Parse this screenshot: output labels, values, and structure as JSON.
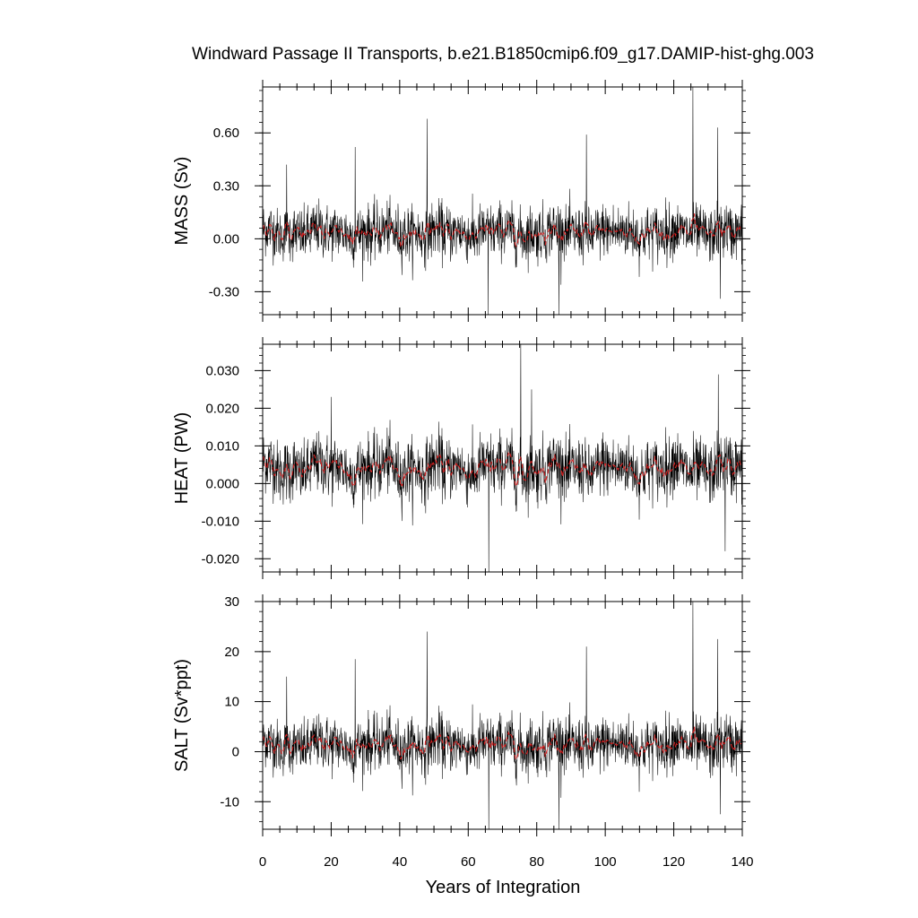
{
  "chart_data": {
    "type": "line",
    "title": "Windward Passage II Transports, b.e21.B1850cmip6.f09_g17.DAMIP-hist-ghg.003",
    "xlabel": "Years of Integration",
    "xlim": [
      0,
      140
    ],
    "xticks": [
      0,
      20,
      40,
      60,
      80,
      100,
      120,
      140
    ],
    "colors": {
      "monthly": "#000000",
      "smoothed": "#d62020"
    },
    "panels": [
      {
        "id": "mass",
        "ylabel": "MASS (Sv)",
        "ylim": [
          -0.43,
          0.86
        ],
        "yticks": [
          {
            "v": -0.3,
            "label": "-0.30"
          },
          {
            "v": 0.0,
            "label": "0.00"
          },
          {
            "v": 0.3,
            "label": "0.30"
          },
          {
            "v": 0.6,
            "label": "0.60"
          }
        ],
        "mean": 0.035,
        "noise": 0.09,
        "smooth_amp": 0.02,
        "spikes": [
          [
            7,
            0.42
          ],
          [
            27,
            0.52
          ],
          [
            48,
            0.68
          ],
          [
            65.8,
            -0.43
          ],
          [
            86.5,
            -0.43
          ],
          [
            94.5,
            0.59
          ],
          [
            125.6,
            0.86
          ],
          [
            132.8,
            0.63
          ],
          [
            133.6,
            -0.34
          ]
        ]
      },
      {
        "id": "heat",
        "ylabel": "HEAT (PW)",
        "ylim": [
          -0.0235,
          0.037
        ],
        "yticks": [
          {
            "v": -0.02,
            "label": "-0.020"
          },
          {
            "v": -0.01,
            "label": "-0.010"
          },
          {
            "v": 0.0,
            "label": "0.000"
          },
          {
            "v": 0.01,
            "label": "0.010"
          },
          {
            "v": 0.02,
            "label": "0.020"
          },
          {
            "v": 0.03,
            "label": "0.030"
          }
        ],
        "mean": 0.004,
        "noise": 0.0048,
        "smooth_amp": 0.0018,
        "spikes": [
          [
            20,
            0.023
          ],
          [
            66,
            -0.0235
          ],
          [
            75.3,
            0.037
          ],
          [
            78.5,
            0.025
          ],
          [
            133,
            0.029
          ],
          [
            135,
            -0.018
          ]
        ]
      },
      {
        "id": "salt",
        "ylabel": "SALT (Sv*ppt)",
        "ylim": [
          -15.5,
          30
        ],
        "yticks": [
          {
            "v": -10,
            "label": "-10"
          },
          {
            "v": 0,
            "label": "0"
          },
          {
            "v": 10,
            "label": "10"
          },
          {
            "v": 20,
            "label": "20"
          },
          {
            "v": 30,
            "label": "30"
          }
        ],
        "mean": 1.3,
        "noise": 3.2,
        "smooth_amp": 0.9,
        "spikes": [
          [
            7,
            15
          ],
          [
            27,
            18.5
          ],
          [
            48,
            24
          ],
          [
            66,
            -15.5
          ],
          [
            86.5,
            -15.5
          ],
          [
            94.5,
            21
          ],
          [
            125.6,
            30
          ],
          [
            132.8,
            22.5
          ],
          [
            133.6,
            -12.5
          ]
        ]
      }
    ]
  }
}
